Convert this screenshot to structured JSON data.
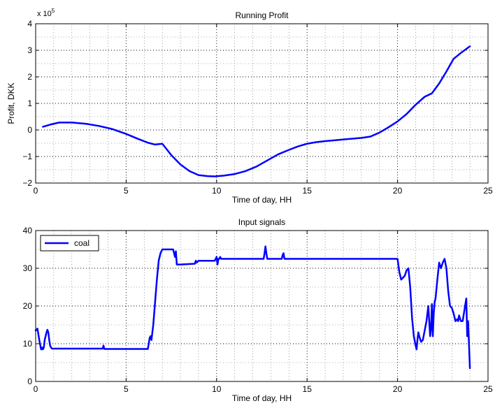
{
  "chart_data": [
    {
      "type": "line",
      "title": "Running Profit",
      "xlabel": "Time of day, HH",
      "ylabel": "Profit, DKK",
      "y_exponent_label": "x 10",
      "y_exponent_power": "5",
      "xlim": [
        0,
        25
      ],
      "ylim": [
        -2,
        4
      ],
      "xticks": [
        0,
        5,
        10,
        15,
        20,
        25
      ],
      "yticks": [
        -2,
        -1,
        0,
        1,
        2,
        3,
        4
      ],
      "xtick_labels": [
        "0",
        "5",
        "10",
        "15",
        "20",
        "25"
      ],
      "ytick_labels": [
        "−2",
        "−1",
        "0",
        "1",
        "2",
        "3",
        "4"
      ],
      "grid": true,
      "color": "#0000ff",
      "series": [
        {
          "x": [
            0.4,
            0.8,
            1.3,
            2.0,
            2.8,
            3.5,
            4.2,
            5.0,
            5.6,
            6.2,
            6.6,
            7.0,
            7.5,
            8.0,
            8.5,
            9.0,
            9.5,
            9.9,
            10.4,
            11.0,
            11.6,
            12.2,
            12.8,
            13.4,
            14.0,
            14.5,
            15.0,
            15.5,
            16.0,
            16.5,
            17.0,
            17.5,
            18.0,
            18.5,
            19.0,
            19.5,
            20.0,
            20.5,
            21.0,
            21.5,
            21.9,
            22.3,
            22.7,
            23.1,
            23.5,
            24.0
          ],
          "y": [
            0.12,
            0.2,
            0.28,
            0.28,
            0.23,
            0.15,
            0.04,
            -0.15,
            -0.32,
            -0.48,
            -0.55,
            -0.52,
            -0.95,
            -1.3,
            -1.55,
            -1.7,
            -1.74,
            -1.75,
            -1.72,
            -1.66,
            -1.55,
            -1.38,
            -1.15,
            -0.92,
            -0.75,
            -0.62,
            -0.52,
            -0.46,
            -0.42,
            -0.39,
            -0.36,
            -0.33,
            -0.3,
            -0.25,
            -0.1,
            0.1,
            0.32,
            0.6,
            0.95,
            1.25,
            1.38,
            1.75,
            2.2,
            2.68,
            2.9,
            3.15
          ]
        }
      ]
    },
    {
      "type": "line",
      "title": "Input signals",
      "xlabel": "Time of day, HH",
      "ylabel": "",
      "xlim": [
        0,
        25
      ],
      "ylim": [
        0,
        40
      ],
      "xticks": [
        0,
        5,
        10,
        15,
        20,
        25
      ],
      "yticks": [
        0,
        10,
        20,
        30,
        40
      ],
      "xtick_labels": [
        "0",
        "5",
        "10",
        "15",
        "20",
        "25"
      ],
      "ytick_labels": [
        "0",
        "10",
        "20",
        "30",
        "40"
      ],
      "grid": true,
      "legend": "top-left",
      "color": "#0000ff",
      "series": [
        {
          "name": "coal",
          "x": [
            0.0,
            0.1,
            0.2,
            0.3,
            0.35,
            0.4,
            0.45,
            0.5,
            0.55,
            0.6,
            0.65,
            0.7,
            0.75,
            0.8,
            0.85,
            0.9,
            0.95,
            1.0,
            3.7,
            3.75,
            3.8,
            3.85,
            3.9,
            3.95,
            6.1,
            6.2,
            6.3,
            6.35,
            6.4,
            6.5,
            6.6,
            6.7,
            6.8,
            6.9,
            7.0,
            7.6,
            7.7,
            7.75,
            7.8,
            7.9,
            8.0,
            8.8,
            8.85,
            8.9,
            9.0,
            9.2,
            9.4,
            9.9,
            10.0,
            10.05,
            10.1,
            10.15,
            10.2,
            10.25,
            10.3,
            12.6,
            12.65,
            12.7,
            12.75,
            12.8,
            13.6,
            13.65,
            13.7,
            13.75,
            19.9,
            20.0,
            20.1,
            20.2,
            20.3,
            20.4,
            20.5,
            20.6,
            20.7,
            20.8,
            20.9,
            21.0,
            21.05,
            21.1,
            21.15,
            21.2,
            21.3,
            21.4,
            21.5,
            21.6,
            21.7,
            21.75,
            21.8,
            21.85,
            21.9,
            21.95,
            22.0,
            22.05,
            22.1,
            22.2,
            22.3,
            22.4,
            22.5,
            22.6,
            22.7,
            22.8,
            22.9,
            23.0,
            23.1,
            23.2,
            23.3,
            23.35,
            23.4,
            23.5,
            23.6,
            23.7,
            23.8,
            23.85,
            23.9,
            24.0
          ],
          "y": [
            13.5,
            14.0,
            11.0,
            8.5,
            9.0,
            8.5,
            9.0,
            11.0,
            12.0,
            13.0,
            13.7,
            13.0,
            11.0,
            9.5,
            9.0,
            8.7,
            8.7,
            8.7,
            8.7,
            9.5,
            8.6,
            8.6,
            8.6,
            8.6,
            8.6,
            8.6,
            11.5,
            12.0,
            11.0,
            15.0,
            21.0,
            27.0,
            32.0,
            34.0,
            35.0,
            35.0,
            33.0,
            34.5,
            31.0,
            31.0,
            31.0,
            31.2,
            32.0,
            31.5,
            32.0,
            32.0,
            32.0,
            32.0,
            33.0,
            31.0,
            32.5,
            32.5,
            33.0,
            32.5,
            32.5,
            32.5,
            34.0,
            35.8,
            34.0,
            32.5,
            32.5,
            33.5,
            34.0,
            32.5,
            32.5,
            32.5,
            29.0,
            27.0,
            27.5,
            28.0,
            29.5,
            30.0,
            25.0,
            17.0,
            12.0,
            9.5,
            8.5,
            11.0,
            13.0,
            12.0,
            10.5,
            11.0,
            13.5,
            16.0,
            20.0,
            16.0,
            12.0,
            14.0,
            20.5,
            12.0,
            18.0,
            21.0,
            22.0,
            27.0,
            31.5,
            30.0,
            31.5,
            32.5,
            30.0,
            24.0,
            20.0,
            19.5,
            18.0,
            16.0,
            16.5,
            16.0,
            17.5,
            16.0,
            16.0,
            19.0,
            22.0,
            12.0,
            16.0,
            3.5
          ]
        }
      ]
    }
  ]
}
